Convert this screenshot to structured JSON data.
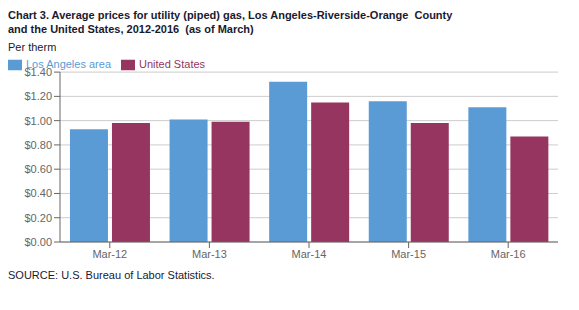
{
  "chart_data": {
    "type": "bar",
    "title": "Chart 3. Average prices for utility (piped) gas, Los Angeles-Riverside-Orange  County\nand the United States, 2012-2016  (as of March)",
    "ylabel": "Per therm",
    "source": "SOURCE: U.S. Bureau of Labor Statistics.",
    "categories": [
      "Mar-12",
      "Mar-13",
      "Mar-14",
      "Mar-15",
      "Mar-16"
    ],
    "series": [
      {
        "name": "Los Angeles area",
        "color": "#5B9BD5",
        "values": [
          0.93,
          1.01,
          1.32,
          1.16,
          1.11
        ]
      },
      {
        "name": "United States",
        "color": "#963560",
        "values": [
          0.98,
          0.99,
          1.15,
          0.98,
          0.87
        ]
      }
    ],
    "ylim": [
      0,
      1.4
    ],
    "yticks": [
      {
        "value": 0,
        "label": "$0.00"
      },
      {
        "value": 0.2,
        "label": "$0.20"
      },
      {
        "value": 0.4,
        "label": "$0.40"
      },
      {
        "value": 0.6,
        "label": "$0.60"
      },
      {
        "value": 0.8,
        "label": "$0.80"
      },
      {
        "value": 1.0,
        "label": "$1.00"
      },
      {
        "value": 1.2,
        "label": "$1.20"
      },
      {
        "value": 1.4,
        "label": "$1.40"
      }
    ],
    "grid": true,
    "legend": "upper left"
  }
}
